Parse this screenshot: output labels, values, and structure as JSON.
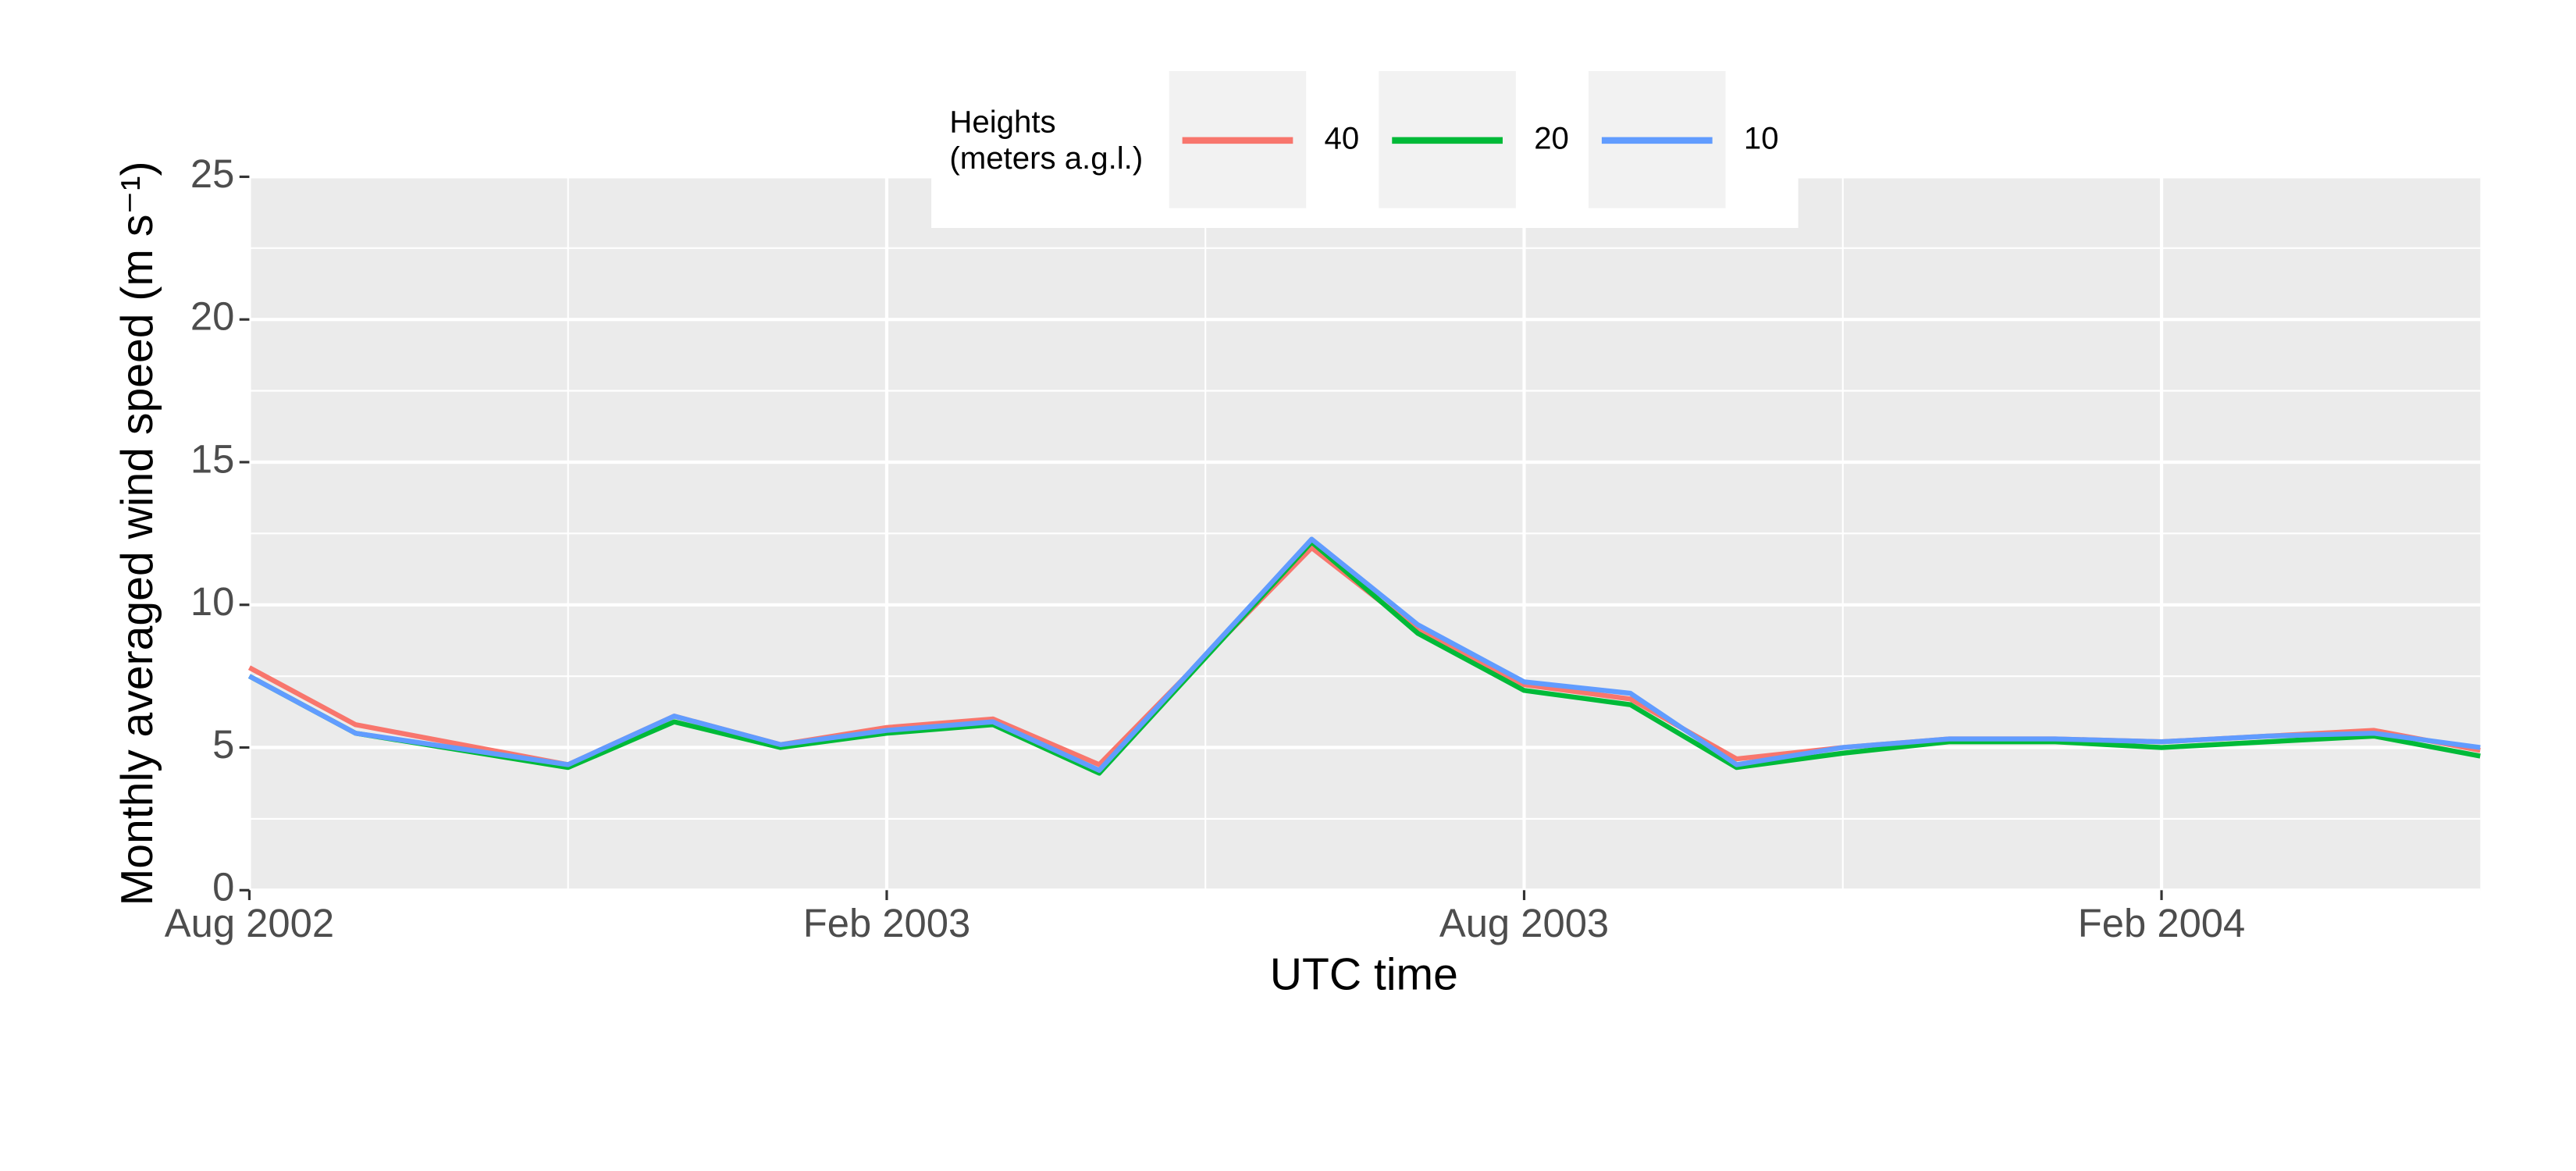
{
  "chart_data": {
    "type": "line",
    "x_label": "UTC time",
    "y_label": "Monthly averaged wind speed (m s⁻¹)",
    "legend_title": [
      "Heights",
      "(meters a.g.l.)"
    ],
    "legend_position": "top",
    "grid": true,
    "x": [
      "2002-08",
      "2002-09",
      "2002-11",
      "2002-12",
      "2003-01",
      "2003-02",
      "2003-03",
      "2003-04",
      "2003-06",
      "2003-07",
      "2003-08",
      "2003-09",
      "2003-10",
      "2003-11",
      "2003-12",
      "2004-01",
      "2004-02",
      "2004-03",
      "2004-04",
      "2004-05"
    ],
    "xlim": [
      "2002-08",
      "2004-05"
    ],
    "xticks": [
      {
        "value": "2002-08",
        "label": "Aug 2002"
      },
      {
        "value": "2003-02",
        "label": "Feb 2003"
      },
      {
        "value": "2003-08",
        "label": "Aug 2003"
      },
      {
        "value": "2004-02",
        "label": "Feb 2004"
      }
    ],
    "ylim": [
      0,
      25
    ],
    "yticks": [
      0,
      5,
      10,
      15,
      20,
      25
    ],
    "series": [
      {
        "name": "40",
        "color": "#f8766d",
        "values": [
          7.8,
          5.8,
          4.4,
          6.1,
          5.1,
          5.7,
          6.0,
          4.4,
          12.0,
          9.1,
          7.2,
          6.7,
          4.6,
          5.0,
          5.3,
          5.3,
          5.2,
          5.4,
          5.6,
          4.9
        ]
      },
      {
        "name": "20",
        "color": "#00ba38",
        "values": [
          7.5,
          5.5,
          4.3,
          5.9,
          5.0,
          5.5,
          5.8,
          4.1,
          12.2,
          9.0,
          7.0,
          6.5,
          4.3,
          4.8,
          5.2,
          5.2,
          5.0,
          5.2,
          5.4,
          4.7
        ]
      },
      {
        "name": "10",
        "color": "#619cff",
        "values": [
          7.5,
          5.5,
          4.4,
          6.1,
          5.1,
          5.6,
          5.9,
          4.2,
          12.3,
          9.3,
          7.3,
          6.9,
          4.4,
          5.0,
          5.3,
          5.3,
          5.2,
          5.4,
          5.5,
          5.0
        ]
      }
    ]
  }
}
